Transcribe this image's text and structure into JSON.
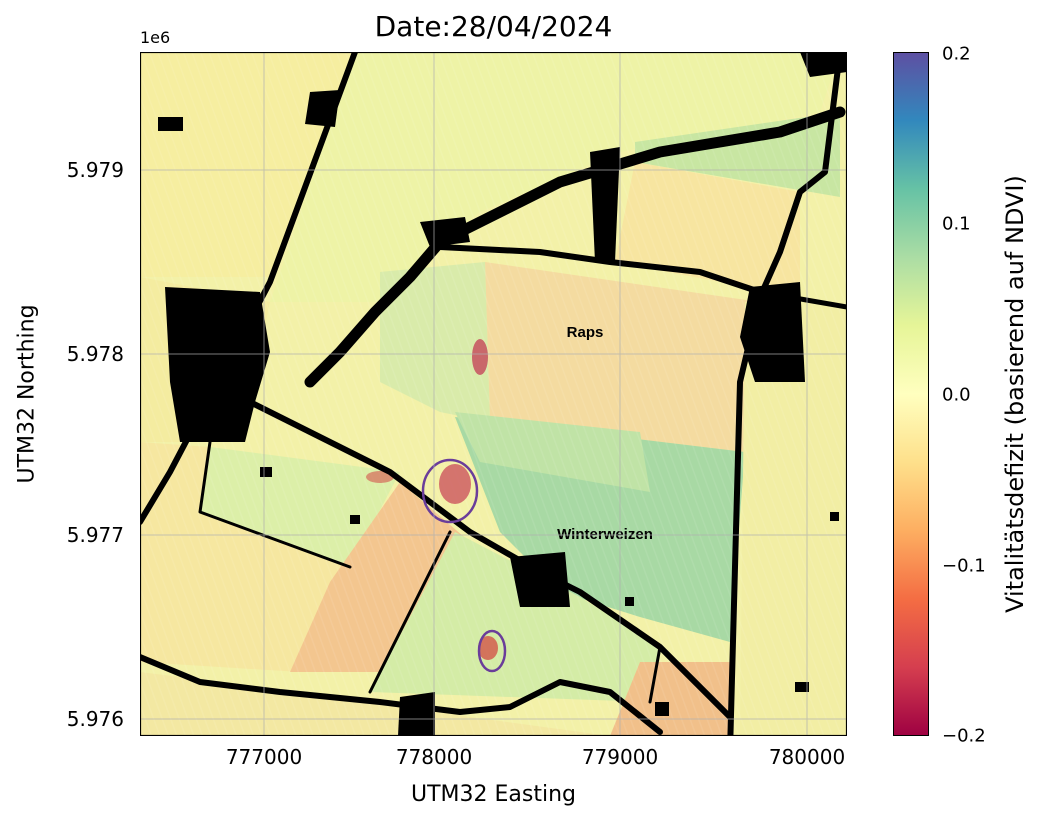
{
  "title": "Date:28/04/2024",
  "axes": {
    "exponent": "1e6",
    "xlabel": "UTM32 Easting",
    "ylabel": "UTM32 Northing",
    "xticks": [
      "777000",
      "778000",
      "779000",
      "780000"
    ],
    "yticks": [
      "5.979",
      "5.978",
      "5.977",
      "5.976"
    ],
    "grid": true
  },
  "colorbar": {
    "label": "Vitalitätsdefizit (basierend auf NDVI)",
    "ticks": [
      "0.2",
      "0.1",
      "0.0",
      "−0.1",
      "−0.2"
    ],
    "range": [
      -0.2,
      0.2
    ],
    "colormap": "Spectral",
    "colors": [
      "#9e0142",
      "#d53e4f",
      "#f46d43",
      "#fdae61",
      "#fee08b",
      "#ffffbf",
      "#e6f598",
      "#abdda4",
      "#66c2a5",
      "#3288bd",
      "#5e4fa2"
    ]
  },
  "map": {
    "field_labels": [
      "Raps",
      "Winterweizen"
    ],
    "highlight_color": "#6a3d9a",
    "highlight_count": 2
  }
}
